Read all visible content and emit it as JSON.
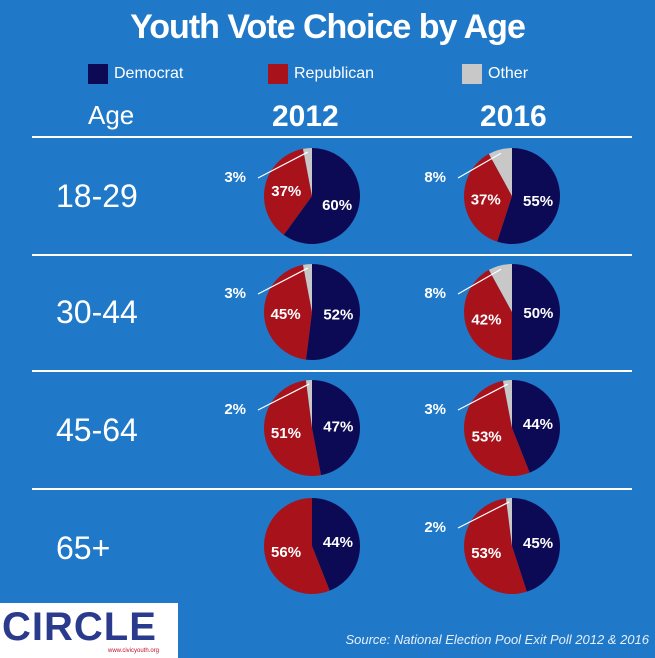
{
  "title": "Youth Vote Choice by Age",
  "legend": [
    {
      "label": "Democrat",
      "color": "#0d0a55"
    },
    {
      "label": "Republican",
      "color": "#a8121b"
    },
    {
      "label": "Other",
      "color": "#c8c8c8"
    }
  ],
  "header": {
    "age": "Age",
    "years": [
      "2012",
      "2016"
    ]
  },
  "source": "Source: National Election Pool Exit Poll 2012 & 2016",
  "logo": {
    "text": "CIRCLE",
    "url": "www.civicyouth.org"
  },
  "chart_data": {
    "type": "pie",
    "title": "Youth Vote Choice by Age",
    "series_names": [
      "Democrat",
      "Republican",
      "Other"
    ],
    "colors": [
      "#0d0a55",
      "#a8121b",
      "#c8c8c8"
    ],
    "years": [
      "2012",
      "2016"
    ],
    "rows": [
      {
        "age": "18-29",
        "2012": [
          60,
          37,
          3
        ],
        "2016": [
          55,
          37,
          8
        ]
      },
      {
        "age": "30-44",
        "2012": [
          52,
          45,
          3
        ],
        "2016": [
          50,
          42,
          8
        ]
      },
      {
        "age": "45-64",
        "2012": [
          47,
          51,
          2
        ],
        "2016": [
          44,
          53,
          3
        ]
      },
      {
        "age": "65+",
        "2012": [
          44,
          56,
          0
        ],
        "2016": [
          45,
          53,
          2
        ]
      }
    ]
  }
}
